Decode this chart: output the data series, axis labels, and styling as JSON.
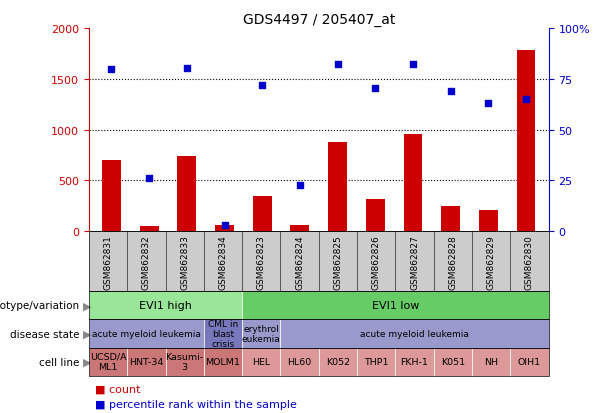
{
  "title": "GDS4497 / 205407_at",
  "samples": [
    "GSM862831",
    "GSM862832",
    "GSM862833",
    "GSM862834",
    "GSM862823",
    "GSM862824",
    "GSM862825",
    "GSM862826",
    "GSM862827",
    "GSM862828",
    "GSM862829",
    "GSM862830"
  ],
  "counts": [
    700,
    50,
    740,
    60,
    350,
    60,
    880,
    320,
    960,
    250,
    210,
    1780
  ],
  "percentile_vals": [
    1600,
    520,
    1610,
    60,
    1440,
    460,
    1650,
    1410,
    1650,
    1380,
    1260,
    1300
  ],
  "bar_color": "#cc0000",
  "dot_color": "#0000cc",
  "ylim_left": [
    0,
    2000
  ],
  "yticks_left": [
    0,
    500,
    1000,
    1500,
    2000
  ],
  "yticks_right": [
    0,
    25,
    50,
    75,
    100
  ],
  "ytick_labels_right": [
    "0",
    "25",
    "50",
    "75",
    "100%"
  ],
  "genotype_label": "genotype/variation",
  "genotype_groups": [
    {
      "text": "EVI1 high",
      "start": 0,
      "end": 4,
      "color": "#99e699"
    },
    {
      "text": "EVI1 low",
      "start": 4,
      "end": 12,
      "color": "#66cc66"
    }
  ],
  "disease_label": "disease state",
  "disease_groups": [
    {
      "text": "acute myeloid leukemia",
      "start": 0,
      "end": 3,
      "color": "#9999cc"
    },
    {
      "text": "CML in\nblast\ncrisis",
      "start": 3,
      "end": 4,
      "color": "#7777bb"
    },
    {
      "text": "erythrol\neukemia",
      "start": 4,
      "end": 5,
      "color": "#9999cc"
    },
    {
      "text": "acute myeloid leukemia",
      "start": 5,
      "end": 12,
      "color": "#9999cc"
    }
  ],
  "cell_label": "cell line",
  "cell_groups": [
    {
      "text": "UCSD/A\nML1",
      "start": 0,
      "end": 1,
      "color": "#cc7777"
    },
    {
      "text": "HNT-34",
      "start": 1,
      "end": 2,
      "color": "#cc7777"
    },
    {
      "text": "Kasumi-\n3",
      "start": 2,
      "end": 3,
      "color": "#cc7777"
    },
    {
      "text": "MOLM1",
      "start": 3,
      "end": 4,
      "color": "#cc7777"
    },
    {
      "text": "HEL",
      "start": 4,
      "end": 5,
      "color": "#dd9999"
    },
    {
      "text": "HL60",
      "start": 5,
      "end": 6,
      "color": "#dd9999"
    },
    {
      "text": "K052",
      "start": 6,
      "end": 7,
      "color": "#dd9999"
    },
    {
      "text": "THP1",
      "start": 7,
      "end": 8,
      "color": "#dd9999"
    },
    {
      "text": "FKH-1",
      "start": 8,
      "end": 9,
      "color": "#dd9999"
    },
    {
      "text": "K051",
      "start": 9,
      "end": 10,
      "color": "#dd9999"
    },
    {
      "text": "NH",
      "start": 10,
      "end": 11,
      "color": "#dd9999"
    },
    {
      "text": "OIH1",
      "start": 11,
      "end": 12,
      "color": "#dd9999"
    }
  ],
  "xtick_bg": "#cccccc",
  "legend_count_color": "#cc0000",
  "legend_dot_color": "#0000cc",
  "bg_color": "#ffffff"
}
